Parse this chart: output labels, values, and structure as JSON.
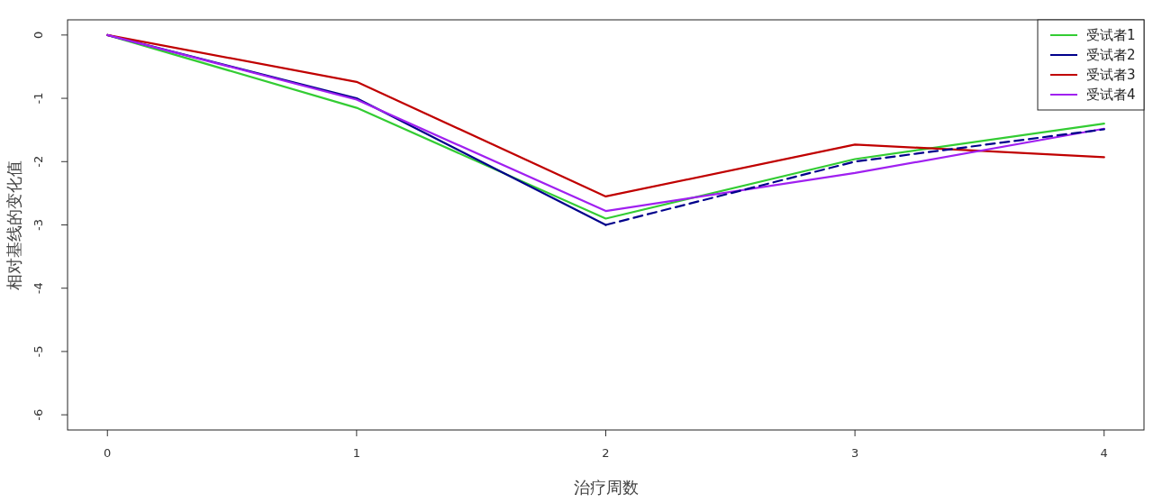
{
  "chart_data": {
    "type": "line",
    "xlabel": "治疗周数",
    "ylabel": "相对基线的变化值",
    "x": [
      0,
      1,
      2,
      3,
      4
    ],
    "xlim": [
      -0.16,
      4.16
    ],
    "ylim": [
      -6.24,
      0.24
    ],
    "xticks": [
      0,
      1,
      2,
      3,
      4
    ],
    "yticks": [
      -6,
      -5,
      -4,
      -3,
      -2,
      -1,
      0
    ],
    "grid": false,
    "legend": "top right",
    "marker": "none",
    "series": [
      {
        "name": "受试者1",
        "color": "#33cc33",
        "values": [
          0,
          -1.15,
          -2.9,
          -1.96,
          -1.4
        ]
      },
      {
        "name": "受试者2",
        "color": "#00008b",
        "values": [
          0,
          -1.0,
          -3.0,
          null,
          null
        ],
        "line_style": "solid"
      },
      {
        "name": "受试者3",
        "color": "#c00000",
        "values": [
          0,
          -0.74,
          -2.55,
          -1.73,
          -1.93
        ]
      },
      {
        "name": "受试者4",
        "color": "#a020f0",
        "values": [
          0,
          -1.02,
          -2.78,
          -2.18,
          -1.48
        ]
      },
      {
        "color": "#00008b",
        "x": [
          2,
          3,
          4
        ],
        "values": [
          -3.0,
          -2.0,
          -1.49
        ],
        "line_style": "dashed"
      }
    ]
  }
}
